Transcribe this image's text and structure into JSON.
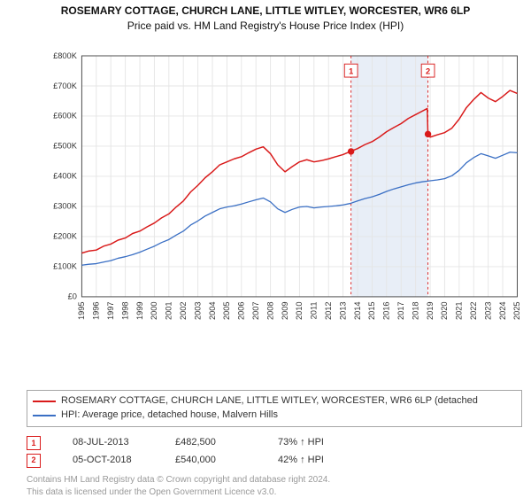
{
  "title": "ROSEMARY COTTAGE, CHURCH LANE, LITTLE WITLEY, WORCESTER, WR6 6LP",
  "subtitle": "Price paid vs. HM Land Registry's House Price Index (HPI)",
  "chart": {
    "type": "line",
    "background_color": "#ffffff",
    "grid_color": "#e5e5e5",
    "axis_color": "#444444",
    "shaded_band_color": "#e8eef7",
    "shaded_band_x_start": 2013.55,
    "shaded_band_x_end": 2018.85,
    "marker_dash_color": "#d91a1a",
    "xlim": [
      1995,
      2025
    ],
    "x_ticks": [
      1995,
      1996,
      1997,
      1998,
      1999,
      2000,
      2001,
      2002,
      2003,
      2004,
      2005,
      2006,
      2007,
      2008,
      2009,
      2010,
      2011,
      2012,
      2013,
      2014,
      2015,
      2016,
      2017,
      2018,
      2019,
      2020,
      2021,
      2022,
      2023,
      2024,
      2025
    ],
    "ylim": [
      0,
      800000
    ],
    "y_ticks": [
      0,
      100000,
      200000,
      300000,
      400000,
      500000,
      600000,
      700000,
      800000
    ],
    "y_tick_labels": [
      "£0",
      "£100K",
      "£200K",
      "£300K",
      "£400K",
      "£500K",
      "£600K",
      "£700K",
      "£800K"
    ],
    "series": [
      {
        "name": "ROSEMARY COTTAGE, CHURCH LANE, LITTLE WITLEY, WORCESTER, WR6 6LP (detached",
        "color": "#d91a1a",
        "line_width": 1.6,
        "data": [
          [
            1995,
            145000
          ],
          [
            1995.5,
            152000
          ],
          [
            1996,
            155000
          ],
          [
            1996.5,
            168000
          ],
          [
            1997,
            175000
          ],
          [
            1997.5,
            188000
          ],
          [
            1998,
            195000
          ],
          [
            1998.5,
            210000
          ],
          [
            1999,
            218000
          ],
          [
            1999.5,
            232000
          ],
          [
            2000,
            245000
          ],
          [
            2000.5,
            262000
          ],
          [
            2001,
            275000
          ],
          [
            2001.5,
            298000
          ],
          [
            2002,
            318000
          ],
          [
            2002.5,
            348000
          ],
          [
            2003,
            370000
          ],
          [
            2003.5,
            395000
          ],
          [
            2004,
            415000
          ],
          [
            2004.5,
            438000
          ],
          [
            2005,
            448000
          ],
          [
            2005.5,
            458000
          ],
          [
            2006,
            465000
          ],
          [
            2006.5,
            478000
          ],
          [
            2007,
            490000
          ],
          [
            2007.5,
            498000
          ],
          [
            2008,
            475000
          ],
          [
            2008.5,
            438000
          ],
          [
            2009,
            415000
          ],
          [
            2009.5,
            432000
          ],
          [
            2010,
            448000
          ],
          [
            2010.5,
            455000
          ],
          [
            2011,
            448000
          ],
          [
            2011.5,
            452000
          ],
          [
            2012,
            458000
          ],
          [
            2012.5,
            465000
          ],
          [
            2013,
            472000
          ],
          [
            2013.5,
            482500
          ],
          [
            2014,
            492000
          ],
          [
            2014.5,
            505000
          ],
          [
            2015,
            515000
          ],
          [
            2015.5,
            530000
          ],
          [
            2016,
            548000
          ],
          [
            2016.5,
            562000
          ],
          [
            2017,
            575000
          ],
          [
            2017.5,
            592000
          ],
          [
            2018,
            605000
          ],
          [
            2018.8,
            625000
          ],
          [
            2018.85,
            540000
          ],
          [
            2019,
            530000
          ],
          [
            2019.5,
            538000
          ],
          [
            2020,
            545000
          ],
          [
            2020.5,
            560000
          ],
          [
            2021,
            590000
          ],
          [
            2021.5,
            628000
          ],
          [
            2022,
            655000
          ],
          [
            2022.5,
            678000
          ],
          [
            2023,
            660000
          ],
          [
            2023.5,
            648000
          ],
          [
            2024,
            665000
          ],
          [
            2024.5,
            685000
          ],
          [
            2025,
            675000
          ]
        ]
      },
      {
        "name": "HPI: Average price, detached house, Malvern Hills",
        "color": "#3a6fc4",
        "line_width": 1.4,
        "data": [
          [
            1995,
            105000
          ],
          [
            1995.5,
            108000
          ],
          [
            1996,
            110000
          ],
          [
            1996.5,
            115000
          ],
          [
            1997,
            120000
          ],
          [
            1997.5,
            128000
          ],
          [
            1998,
            133000
          ],
          [
            1998.5,
            140000
          ],
          [
            1999,
            148000
          ],
          [
            1999.5,
            158000
          ],
          [
            2000,
            168000
          ],
          [
            2000.5,
            180000
          ],
          [
            2001,
            190000
          ],
          [
            2001.5,
            205000
          ],
          [
            2002,
            218000
          ],
          [
            2002.5,
            238000
          ],
          [
            2003,
            252000
          ],
          [
            2003.5,
            268000
          ],
          [
            2004,
            280000
          ],
          [
            2004.5,
            292000
          ],
          [
            2005,
            298000
          ],
          [
            2005.5,
            302000
          ],
          [
            2006,
            308000
          ],
          [
            2006.5,
            315000
          ],
          [
            2007,
            322000
          ],
          [
            2007.5,
            328000
          ],
          [
            2008,
            315000
          ],
          [
            2008.5,
            292000
          ],
          [
            2009,
            280000
          ],
          [
            2009.5,
            290000
          ],
          [
            2010,
            298000
          ],
          [
            2010.5,
            300000
          ],
          [
            2011,
            295000
          ],
          [
            2011.5,
            298000
          ],
          [
            2012,
            300000
          ],
          [
            2012.5,
            302000
          ],
          [
            2013,
            305000
          ],
          [
            2013.5,
            310000
          ],
          [
            2014,
            318000
          ],
          [
            2014.5,
            326000
          ],
          [
            2015,
            332000
          ],
          [
            2015.5,
            340000
          ],
          [
            2016,
            350000
          ],
          [
            2016.5,
            358000
          ],
          [
            2017,
            365000
          ],
          [
            2017.5,
            372000
          ],
          [
            2018,
            378000
          ],
          [
            2018.5,
            382000
          ],
          [
            2019,
            385000
          ],
          [
            2019.5,
            388000
          ],
          [
            2020,
            392000
          ],
          [
            2020.5,
            402000
          ],
          [
            2021,
            420000
          ],
          [
            2021.5,
            445000
          ],
          [
            2022,
            462000
          ],
          [
            2022.5,
            475000
          ],
          [
            2023,
            468000
          ],
          [
            2023.5,
            460000
          ],
          [
            2024,
            470000
          ],
          [
            2024.5,
            480000
          ],
          [
            2025,
            478000
          ]
        ]
      }
    ],
    "markers": [
      {
        "label": "1",
        "x": 2013.55,
        "price": 482500,
        "box_y": 55000
      },
      {
        "label": "2",
        "x": 2018.85,
        "price": 540000,
        "box_y": 55000
      }
    ]
  },
  "legend": {
    "series1_label": "ROSEMARY COTTAGE, CHURCH LANE, LITTLE WITLEY, WORCESTER, WR6 6LP (detached",
    "series1_color": "#d91a1a",
    "series2_label": "HPI: Average price, detached house, Malvern Hills",
    "series2_color": "#3a6fc4"
  },
  "datapoints": [
    {
      "num": "1",
      "date": "08-JUL-2013",
      "price": "£482,500",
      "pct": "73% ↑ HPI",
      "color": "#d91a1a"
    },
    {
      "num": "2",
      "date": "05-OCT-2018",
      "price": "£540,000",
      "pct": "42% ↑ HPI",
      "color": "#d91a1a"
    }
  ],
  "footer_line1": "Contains HM Land Registry data © Crown copyright and database right 2024.",
  "footer_line2": "This data is licensed under the Open Government Licence v3.0."
}
